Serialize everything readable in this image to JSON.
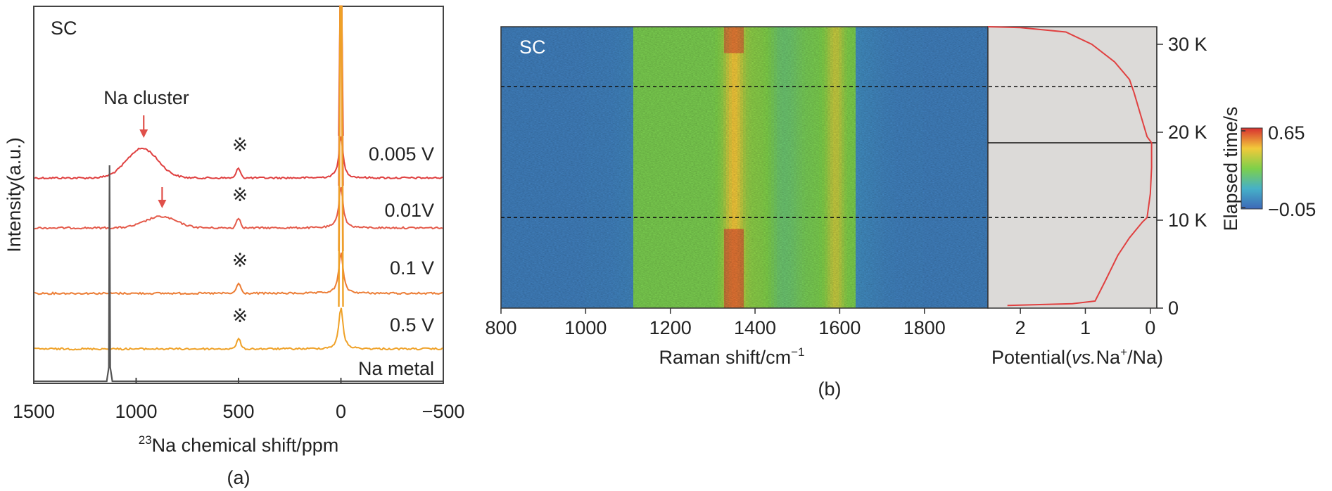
{
  "chart_data": [
    {
      "panel": "(a)",
      "type": "line",
      "title": "SC",
      "xlabel_sup": "23",
      "xlabel": "Na chemical shift/ppm",
      "ylabel": "Intensity(a.u.)",
      "xlim": [
        1500,
        -500
      ],
      "xticks": [
        "1500",
        "1000",
        "500",
        "0",
        "−500"
      ],
      "xtick_values": [
        1500,
        1000,
        500,
        0,
        -500
      ],
      "annotation": "Na cluster",
      "impurity_symbol": "※",
      "impurity_position": 500,
      "series": [
        {
          "name": "0.005 V",
          "color": "#df3f3f",
          "cluster_peak": 970
        },
        {
          "name": "0.01V",
          "color": "#e45a4a",
          "cluster_peak": 880
        },
        {
          "name": "0.1 V",
          "color": "#ec7d35",
          "cluster_peak": null
        },
        {
          "name": "0.5 V",
          "color": "#efa127",
          "cluster_peak": null
        },
        {
          "name": "Na metal",
          "color": "#555555",
          "peak": 1130
        }
      ],
      "main_peak": 0
    },
    {
      "panel": "(b)",
      "type": "heatmap",
      "label": "SC",
      "xlabel": "Raman shift/cm",
      "xlabel_sup": "−1",
      "xlim": [
        800,
        1950
      ],
      "xticks": [
        "800",
        "1000",
        "1200",
        "1400",
        "1600",
        "1800"
      ],
      "xtick_values": [
        800,
        1000,
        1200,
        1400,
        1600,
        1800
      ],
      "bands": [
        1350,
        1590
      ],
      "colorbar_label": "Elapsed time/s",
      "colorbar_range": [
        "0.65",
        "−0.05"
      ],
      "colorbar_colors": [
        "#d83030",
        "#f2c93a",
        "#7ed04a",
        "#46b0c8",
        "#3d68b8"
      ],
      "time_ticks": [
        "30 K",
        "20 K",
        "10 K",
        "0"
      ],
      "time_tick_values": [
        30000,
        20000,
        10000,
        0
      ],
      "time_max": 32000,
      "dashed_lines_at": [
        25200,
        10300
      ],
      "solid_line_at": 18800,
      "potential_axis": {
        "xlabel_pre": "Potential(",
        "xlabel_italic": "vs.",
        "xlabel_post": "Na",
        "xlabel_sup": "+",
        "xlabel_end": "/Na)",
        "xticks": [
          "2",
          "1",
          "0"
        ],
        "xtick_values": [
          2,
          1,
          0
        ],
        "xlim": [
          2.5,
          -0.1
        ],
        "curve_color": "#e04040",
        "curve": [
          [
            2.2,
            300
          ],
          [
            1.2,
            500
          ],
          [
            0.85,
            800
          ],
          [
            0.7,
            3000
          ],
          [
            0.5,
            6000
          ],
          [
            0.32,
            8000
          ],
          [
            0.12,
            9800
          ],
          [
            0.05,
            10300
          ],
          [
            0.0,
            13000
          ],
          [
            -0.02,
            16000
          ],
          [
            -0.02,
            18800
          ],
          [
            0.05,
            19500
          ],
          [
            0.15,
            22000
          ],
          [
            0.25,
            24500
          ],
          [
            0.32,
            26000
          ],
          [
            0.55,
            28000
          ],
          [
            0.9,
            30000
          ],
          [
            1.3,
            31400
          ],
          [
            2.0,
            31900
          ],
          [
            2.5,
            32000
          ]
        ]
      }
    }
  ],
  "captions": {
    "a": "(a)",
    "b": "(b)"
  }
}
